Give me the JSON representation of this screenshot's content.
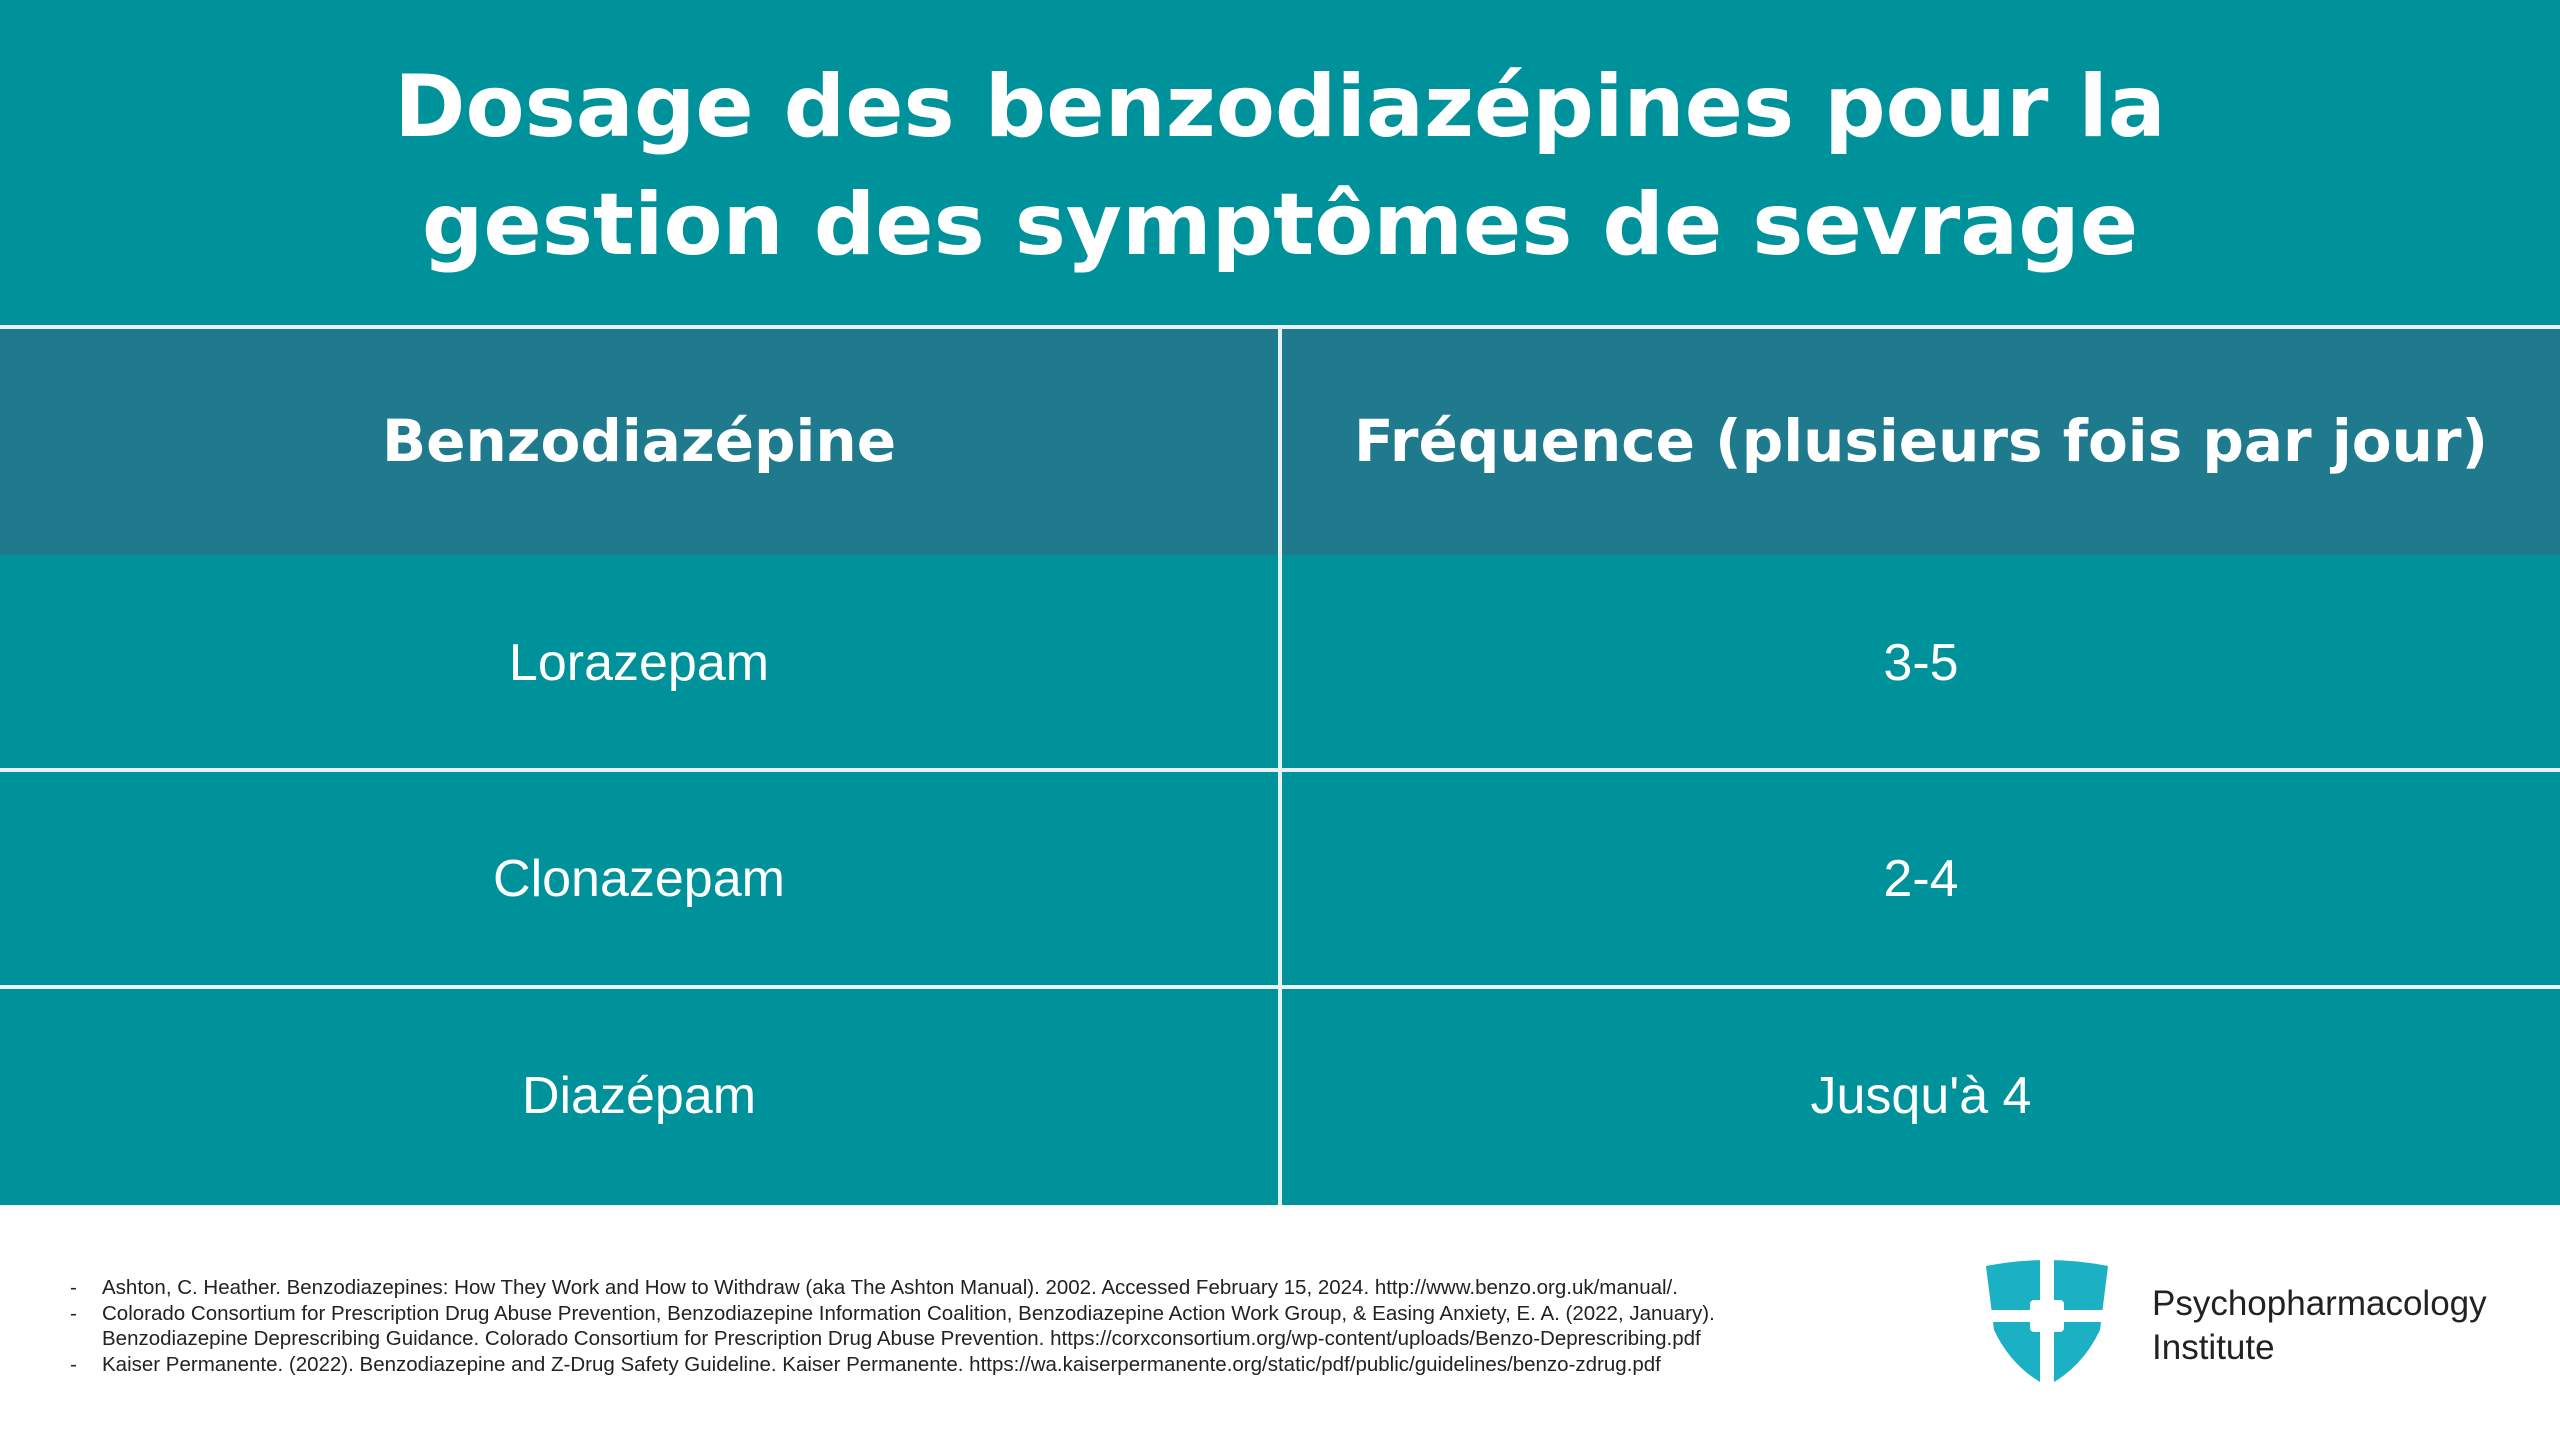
{
  "title": "Dosage des benzodiazépines pour la gestion des symptômes de sevrage",
  "table": {
    "headers": [
      "Benzodiazépine",
      "Fréquence (plusieurs fois par jour)"
    ],
    "rows": [
      [
        "Lorazepam",
        "3-5"
      ],
      [
        "Clonazepam",
        "2-4"
      ],
      [
        "Diazépam",
        "Jusqu'à 4"
      ]
    ]
  },
  "references": [
    "Ashton, C. Heather. Benzodiazepines: How They Work and How to Withdraw (aka The Ashton Manual). 2002. Accessed February 15, 2024. http://www.benzo.org.uk/manual/.",
    "Colorado Consortium for Prescription Drug Abuse Prevention, Benzodiazepine Information Coalition, Benzodiazepine Action Work Group, & Easing Anxiety, E. A. (2022, January). Benzodiazepine Deprescribing Guidance. Colorado Consortium for Prescription Drug Abuse Prevention. https://corxconsortium.org/wp-content/uploads/Benzo-Deprescribing.pdf",
    "Kaiser Permanente. (2022). Benzodiazepine and Z-Drug Safety Guideline. Kaiser Permanente. https://wa.kaiserpermanente.org/static/pdf/public/guidelines/benzo-zdrug.pdf"
  ],
  "logo": {
    "lines": [
      "Psychopharmacology",
      "Institute"
    ]
  }
}
